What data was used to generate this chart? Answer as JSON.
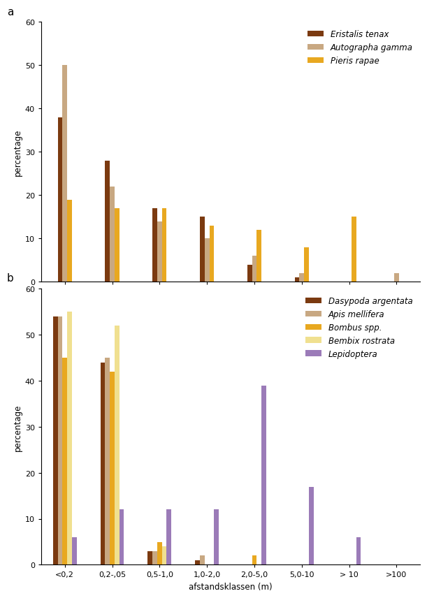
{
  "chart_a": {
    "title": "a",
    "species": [
      "Eristalis tenax",
      "Autographa gamma",
      "Pieris rapae"
    ],
    "colors": [
      "#7B3A10",
      "#C8A882",
      "#E8A820"
    ],
    "categories": [
      "<0,2",
      "0,2-,05",
      "0,5-1,0",
      "1,0-2,0",
      "2,0-5,0",
      "5,0-10",
      "> 10",
      ">100"
    ],
    "data": [
      [
        38,
        28,
        17,
        15,
        4,
        1,
        0,
        0
      ],
      [
        50,
        22,
        14,
        10,
        6,
        2,
        0,
        2
      ],
      [
        19,
        17,
        17,
        13,
        12,
        8,
        15,
        0
      ]
    ],
    "ylabel": "percentage",
    "ylim": [
      0,
      60
    ],
    "yticks": [
      0,
      10,
      20,
      30,
      40,
      50,
      60
    ]
  },
  "chart_b": {
    "title": "b",
    "species": [
      "Dasypoda argentata",
      "Apis mellifera",
      "Bombus spp.",
      "Bembix rostrata",
      "Lepidoptera"
    ],
    "colors": [
      "#7B3A10",
      "#C8A882",
      "#E8A820",
      "#F0E090",
      "#9B7BB8"
    ],
    "categories": [
      "<0,2",
      "0,2-,05",
      "0,5-1,0",
      "1,0-2,0",
      "2,0-5,0",
      "5,0-10",
      "> 10",
      ">100"
    ],
    "data": [
      [
        54,
        44,
        3,
        1,
        0,
        0,
        0,
        0
      ],
      [
        54,
        45,
        3,
        2,
        0,
        0,
        0,
        0
      ],
      [
        45,
        42,
        5,
        0,
        2,
        0,
        0,
        0
      ],
      [
        55,
        52,
        4,
        0,
        0,
        0,
        0,
        0
      ],
      [
        6,
        12,
        12,
        12,
        39,
        17,
        6,
        0
      ]
    ],
    "ylabel": "percentage",
    "xlabel": "afstandsklassen (m)",
    "ylim": [
      0,
      60
    ],
    "yticks": [
      0,
      10,
      20,
      30,
      40,
      50,
      60
    ]
  },
  "figure_background": "#FFFFFF",
  "bar_width": 0.1,
  "legend_fontsize": 8.5,
  "axis_label_fontsize": 8.5,
  "tick_fontsize": 8
}
